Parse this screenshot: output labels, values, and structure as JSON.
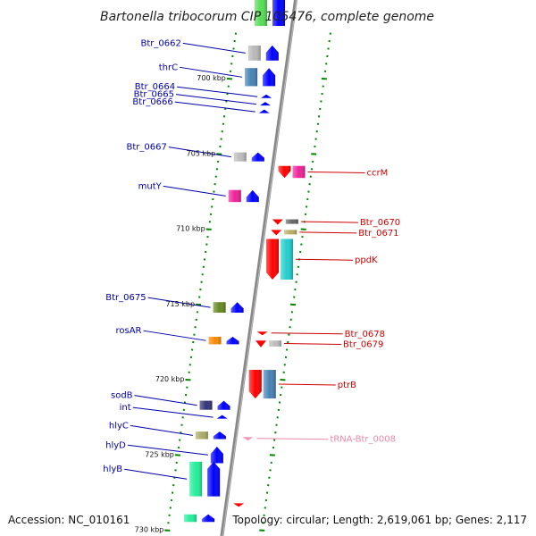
{
  "title": "Bartonella tribocorum CIP 105476, complete genome",
  "footer": {
    "accession": "Accession: NC_010161",
    "topology": "Topology: circular; Length: 2,619,061 bp; Genes: 2,117"
  },
  "colors": {
    "forward_label": "#0000aa",
    "reverse_label": "#cc0000",
    "trna_label": "#ee88aa",
    "forward_arrow": "#0000ff",
    "reverse_arrow": "#ff0000",
    "backbone": "#888888",
    "tick": "#008800"
  },
  "kbp_labels": [
    {
      "kb": 700,
      "text": "700 kbp"
    },
    {
      "kb": 705,
      "text": "705 kbp"
    },
    {
      "kb": 710,
      "text": "710 kbp"
    },
    {
      "kb": 715,
      "text": "715 kbp"
    },
    {
      "kb": 720,
      "text": "720 kbp"
    },
    {
      "kb": 725,
      "text": "725 kbp"
    },
    {
      "kb": 730,
      "text": "730 kbp"
    }
  ],
  "genes": [
    {
      "name": "",
      "strand": "+",
      "kb": 695.2,
      "len": 2.6,
      "color": "#55dd55"
    },
    {
      "name": "Btr_0662",
      "strand": "+",
      "kb": 698.3,
      "len": 1.0,
      "color": "#b8b8b8"
    },
    {
      "name": "thrC",
      "strand": "+",
      "kb": 699.9,
      "len": 1.2,
      "color": "#4682b4"
    },
    {
      "name": "Btr_0664",
      "strand": "+",
      "kb": 701.2,
      "len": 0.1,
      "color": ""
    },
    {
      "name": "Btr_0665",
      "strand": "+",
      "kb": 701.7,
      "len": 0.1,
      "color": ""
    },
    {
      "name": "Btr_0666",
      "strand": "+",
      "kb": 702.2,
      "len": 0.1,
      "color": ""
    },
    {
      "name": "Btr_0667",
      "strand": "+",
      "kb": 705.2,
      "len": 0.6,
      "color": "#bbbbbb"
    },
    {
      "name": "ccrM",
      "strand": "-",
      "kb": 706.2,
      "len": 0.8,
      "color": "#ee2299"
    },
    {
      "name": "mutY",
      "strand": "+",
      "kb": 707.8,
      "len": 0.8,
      "color": "#ee2299"
    },
    {
      "name": "Btr_0670",
      "strand": "-",
      "kb": 709.5,
      "len": 0.3,
      "color": "#666666"
    },
    {
      "name": "Btr_0671",
      "strand": "-",
      "kb": 710.2,
      "len": 0.3,
      "color": "#bbaa66"
    },
    {
      "name": "ppdK",
      "strand": "-",
      "kb": 712.0,
      "len": 2.7,
      "color": "#22cccc"
    },
    {
      "name": "Btr_0675",
      "strand": "+",
      "kb": 715.2,
      "len": 0.7,
      "color": "#668822"
    },
    {
      "name": "Btr_0678",
      "strand": "-",
      "kb": 716.9,
      "len": 0.1,
      "color": ""
    },
    {
      "name": "rosAR",
      "strand": "+",
      "kb": 717.4,
      "len": 0.5,
      "color": "#ff8800"
    },
    {
      "name": "Btr_0679",
      "strand": "-",
      "kb": 717.6,
      "len": 0.4,
      "color": "#bbbbbb"
    },
    {
      "name": "ptrB",
      "strand": "-",
      "kb": 720.3,
      "len": 1.9,
      "color": "#4682b4"
    },
    {
      "name": "sodB",
      "strand": "+",
      "kb": 721.7,
      "len": 0.6,
      "color": "#333377"
    },
    {
      "name": "int",
      "strand": "+",
      "kb": 722.5,
      "len": 0.1,
      "color": ""
    },
    {
      "name": "hlyC",
      "strand": "+",
      "kb": 723.7,
      "len": 0.5,
      "color": "#aaaa66"
    },
    {
      "name": "tRNA-Btr_0008",
      "strand": "-",
      "kb": 723.9,
      "len": 0.1,
      "color": ""
    },
    {
      "name": "hlyD",
      "strand": "+",
      "kb": 725.0,
      "len": 1.1,
      "color": ""
    },
    {
      "name": "hlyB",
      "strand": "+",
      "kb": 726.6,
      "len": 2.3,
      "color": "#22ee99"
    },
    {
      "name": "",
      "strand": "-",
      "kb": 728.3,
      "len": 0.1,
      "color": ""
    },
    {
      "name": "",
      "strand": "+",
      "kb": 729.2,
      "len": 0.5,
      "color": "#22ee99"
    }
  ]
}
